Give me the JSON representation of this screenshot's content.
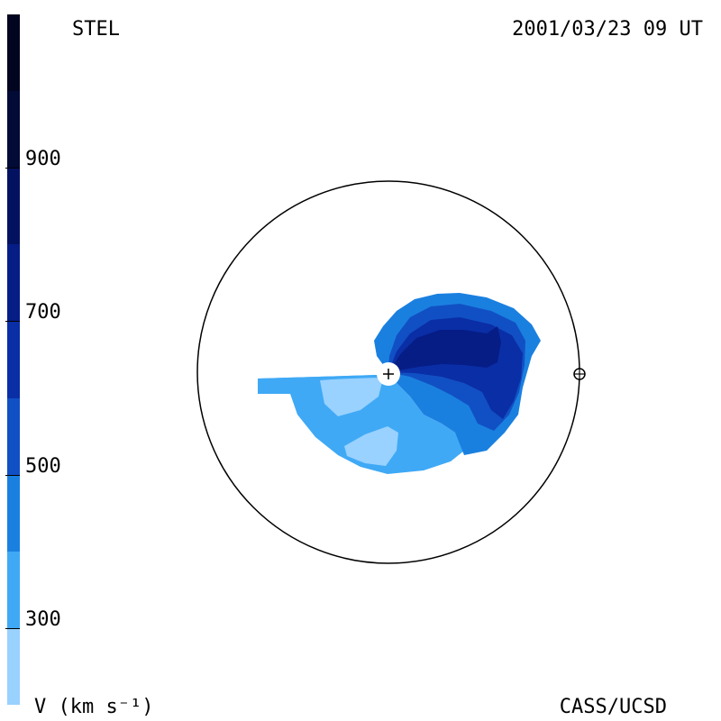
{
  "header": {
    "observatory": "STEL",
    "datetime": "2001/03/23 09 UT"
  },
  "footer": {
    "unit_label": "V (km s⁻¹)",
    "credit": "CASS/UCSD"
  },
  "colorbar": {
    "ticks": [
      "300",
      "500",
      "700",
      "900"
    ],
    "bands": [
      {
        "from": 200,
        "to": 300,
        "color": "#99d1ff"
      },
      {
        "from": 300,
        "to": 400,
        "color": "#3fa9f5"
      },
      {
        "from": 400,
        "to": 500,
        "color": "#1a80e0"
      },
      {
        "from": 500,
        "to": 600,
        "color": "#1150c4"
      },
      {
        "from": 600,
        "to": 700,
        "color": "#0a2ea6"
      },
      {
        "from": 700,
        "to": 800,
        "color": "#061d86"
      },
      {
        "from": 800,
        "to": 900,
        "color": "#031260"
      },
      {
        "from": 900,
        "to": 1000,
        "color": "#020a36"
      },
      {
        "from": 1000,
        "to": 1100,
        "color": "#010520"
      }
    ],
    "range": [
      200,
      1100
    ]
  },
  "markers": {
    "sun": "sun-plus-icon",
    "earth": "earth-circle-plus-icon"
  },
  "colors": {
    "v250": "#99d1ff",
    "v350": "#3fa9f5",
    "v450": "#1a80e0",
    "v550": "#1150c4",
    "v650": "#0a2ea6",
    "v750": "#061d86"
  }
}
